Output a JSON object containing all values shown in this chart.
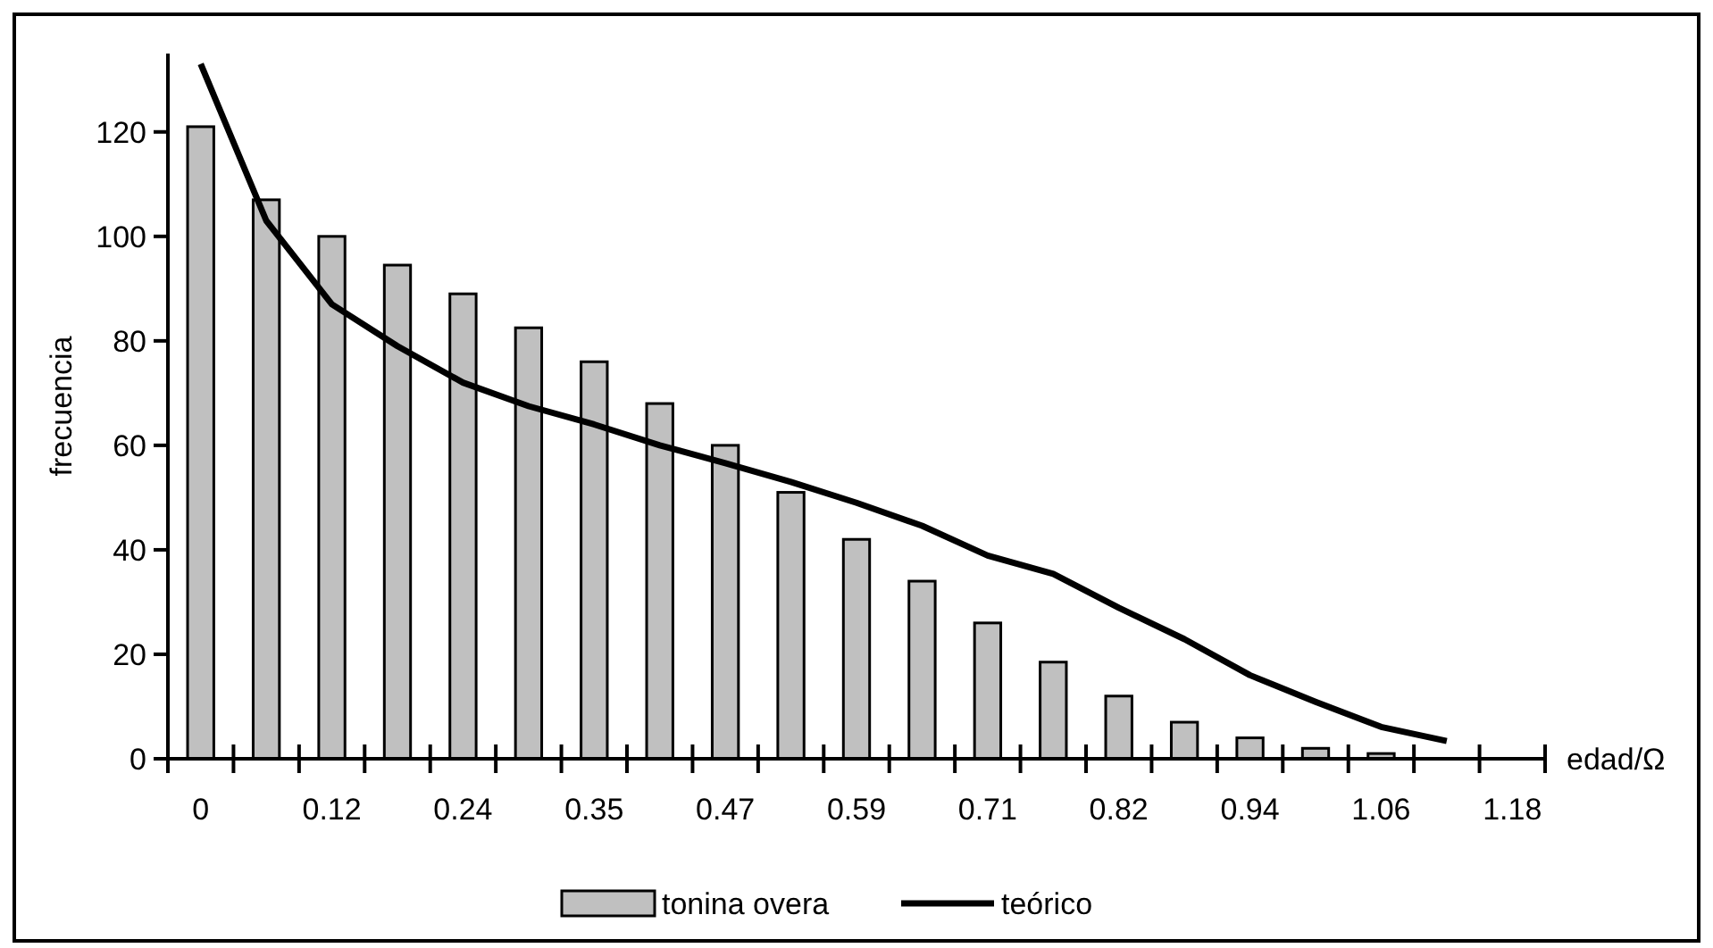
{
  "chart_data": {
    "type": "bar",
    "xlabel": "edad/Ω",
    "ylabel": "frecuencia",
    "categories": [
      "0",
      null,
      "0.12",
      null,
      "0.24",
      null,
      "0.35",
      null,
      "0.47",
      null,
      "0.59",
      null,
      "0.71",
      null,
      "0.82",
      null,
      "0.94",
      null,
      "1.06",
      null,
      "1.18"
    ],
    "series": [
      {
        "name": "tonina overa",
        "color": "#c0c0c0",
        "values": [
          121,
          107,
          100,
          94.5,
          89,
          82.5,
          76,
          68,
          60,
          51,
          42,
          34,
          26,
          18.5,
          12,
          7,
          4,
          2,
          1,
          null,
          null
        ]
      },
      {
        "name": "teórico",
        "type": "line",
        "color": "#000000",
        "values": [
          133,
          103,
          87,
          79,
          72,
          67.5,
          64,
          60,
          56.6,
          53,
          49,
          44.6,
          38.9,
          35.4,
          28.9,
          22.9,
          16,
          10.9,
          6.1,
          3.4,
          null
        ]
      }
    ],
    "ylim": [
      0,
      135
    ],
    "yticks": [
      0,
      20,
      40,
      60,
      80,
      100,
      120
    ],
    "grid": false,
    "legend": "bottom",
    "marker": "none",
    "line_style": "solid"
  }
}
